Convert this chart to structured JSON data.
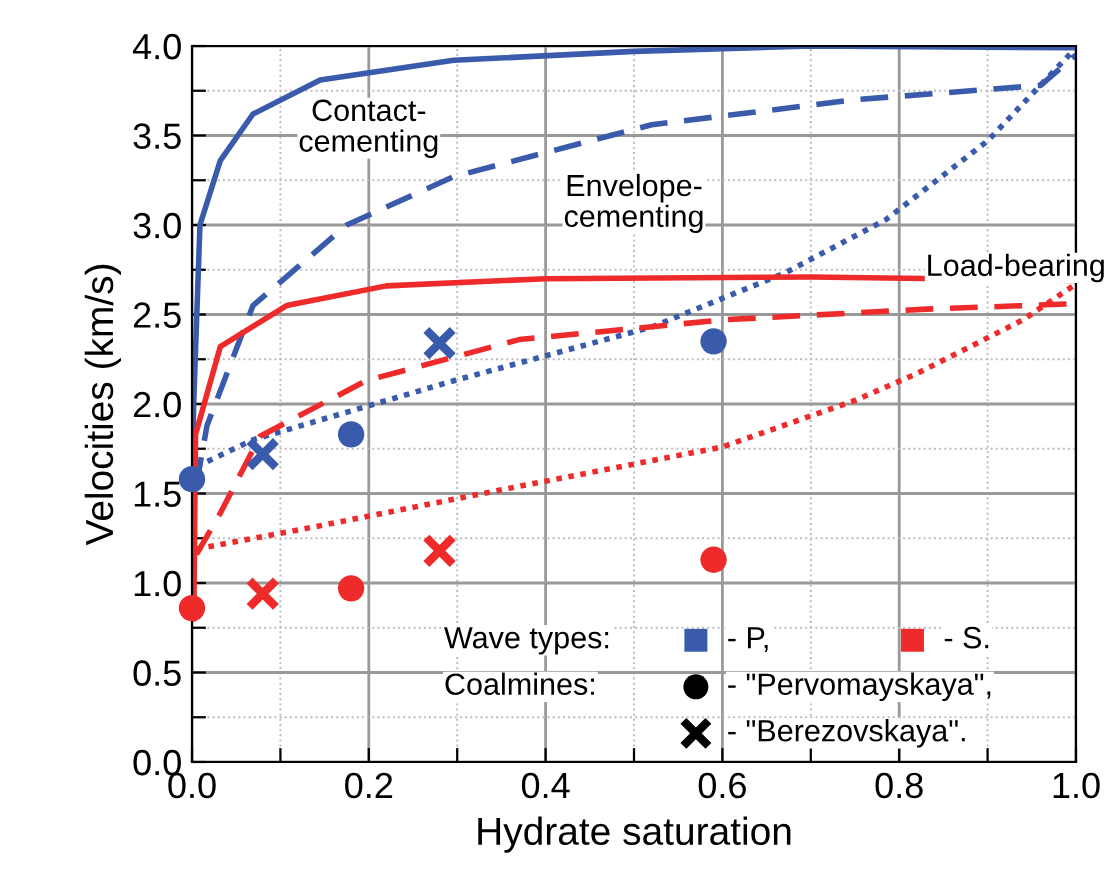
{
  "chart_data": {
    "type": "line",
    "xlabel": "Hydrate saturation",
    "ylabel": "Velocities (km/s)",
    "xlim": [
      0,
      1
    ],
    "ylim": [
      0,
      4
    ],
    "xticks": [
      {
        "value": 0,
        "label": "0.0"
      },
      {
        "value": 0.1,
        "label": null
      },
      0.2,
      {
        "value": 0.3,
        "label": null
      },
      0.4,
      {
        "value": 0.5,
        "label": null
      },
      0.6,
      {
        "value": 0.7,
        "label": null
      },
      0.8,
      {
        "value": 0.9,
        "label": null
      },
      {
        "value": 1,
        "label": "1.0"
      }
    ],
    "yticks": [
      {
        "value": 0,
        "label": "0.0"
      },
      {
        "value": 0.25,
        "label": null
      },
      0.5,
      {
        "value": 0.75,
        "label": null
      },
      {
        "value": 1,
        "label": "1.0"
      },
      {
        "value": 1.25,
        "label": null
      },
      1.5,
      {
        "value": 1.75,
        "label": null
      },
      {
        "value": 2,
        "label": "2.0"
      },
      {
        "value": 2.25,
        "label": null
      },
      2.5,
      {
        "value": 2.75,
        "label": null
      },
      {
        "value": 3,
        "label": "3.0"
      },
      {
        "value": 3.25,
        "label": null
      },
      3.5,
      {
        "value": 3.75,
        "label": null
      },
      {
        "value": 4,
        "label": "4.0"
      }
    ],
    "grid": true,
    "series": [
      {
        "line_style": "solid",
        "color": "#3a5bab",
        "x": [
          0.0,
          0.002,
          0.009,
          0.032,
          0.069,
          0.145,
          0.296,
          0.5,
          0.7,
          1.0
        ],
        "values": [
          1.55,
          2.02,
          3.0,
          3.36,
          3.62,
          3.81,
          3.92,
          3.97,
          4.0,
          3.99
        ]
      },
      {
        "line_style": "dashed",
        "color": "#3a5bab",
        "x": [
          0.005,
          0.017,
          0.069,
          0.175,
          0.296,
          0.52,
          0.75,
          0.96,
          1.0
        ],
        "values": [
          1.55,
          1.88,
          2.55,
          3.0,
          3.27,
          3.56,
          3.7,
          3.78,
          3.95
        ]
      },
      {
        "line_style": "dotted",
        "color": "#3a5bab",
        "x": [
          0.005,
          0.069,
          0.296,
          0.52,
          0.67,
          0.785,
          0.9,
          1.0
        ],
        "values": [
          1.65,
          1.8,
          2.13,
          2.43,
          2.73,
          3.03,
          3.47,
          3.99
        ]
      },
      {
        "line_style": "solid",
        "color": "#ee2a2a",
        "x": [
          0.002,
          0.004,
          0.032,
          0.107,
          0.22,
          0.4,
          0.7,
          1.0
        ],
        "values": [
          0.8,
          1.83,
          2.32,
          2.55,
          2.66,
          2.7,
          2.71,
          2.69
        ]
      },
      {
        "line_style": "dashed",
        "color": "#ee2a2a",
        "x": [
          0.005,
          0.032,
          0.077,
          0.197,
          0.37,
          0.6,
          0.83,
          1.0
        ],
        "values": [
          1.16,
          1.39,
          1.82,
          2.13,
          2.36,
          2.47,
          2.53,
          2.56
        ]
      },
      {
        "line_style": "dotted",
        "color": "#ee2a2a",
        "x": [
          0.005,
          0.145,
          0.37,
          0.6,
          0.75,
          0.82,
          0.94,
          1.0
        ],
        "values": [
          1.19,
          1.32,
          1.54,
          1.76,
          2.02,
          2.17,
          2.47,
          2.67
        ]
      },
      {
        "type": "scatter",
        "marker": "circle",
        "color": "#3a5bab",
        "x": [
          0.0,
          0.18,
          0.59
        ],
        "values": [
          1.58,
          1.83,
          2.35
        ]
      },
      {
        "type": "scatter",
        "marker": "cross",
        "color": "#3a5bab",
        "x": [
          0.08,
          0.28
        ],
        "values": [
          1.72,
          2.34
        ]
      },
      {
        "type": "scatter",
        "marker": "circle",
        "color": "#ee2a2a",
        "x": [
          0.0,
          0.18,
          0.59
        ],
        "values": [
          0.86,
          0.97,
          1.13
        ]
      },
      {
        "type": "scatter",
        "marker": "cross",
        "color": "#ee2a2a",
        "x": [
          0.08,
          0.28
        ],
        "values": [
          0.94,
          1.18
        ]
      }
    ],
    "annotations": [
      "Contact-\ncementing",
      "Envelope-\ncementing",
      "Load-bearing",
      "Wave types:",
      "- P,",
      "- S.",
      "Coalmines:",
      "- \"Pervomayskaya\",",
      "- \"Berezovskaya\"."
    ]
  }
}
